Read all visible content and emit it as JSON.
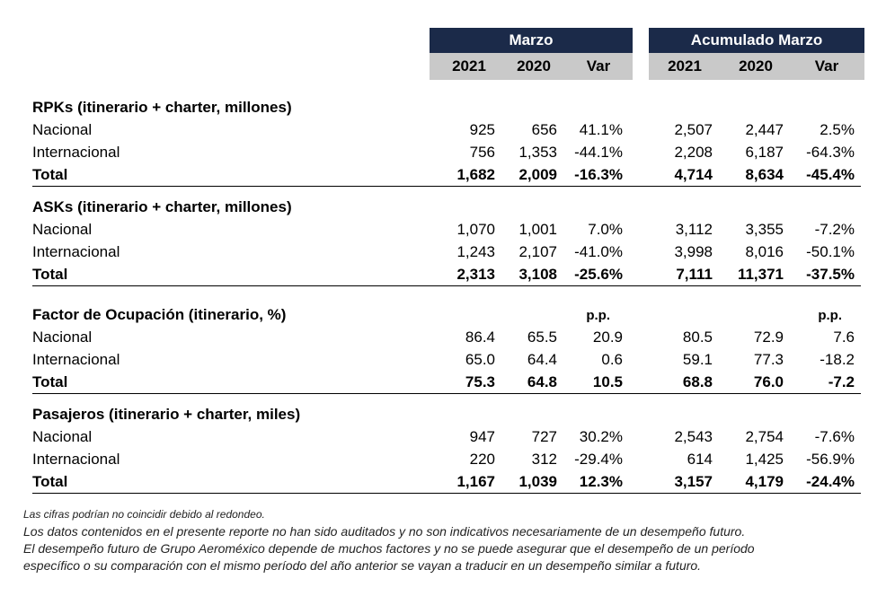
{
  "header": {
    "group1": "Marzo",
    "group2": "Acumulado Marzo",
    "years": [
      "2021",
      "2020",
      "Var",
      "2021",
      "2020",
      "Var"
    ]
  },
  "sections": [
    {
      "title": "RPKs (itinerario + charter, millones)",
      "pp": [
        "",
        ""
      ],
      "rows": [
        {
          "label": "Nacional",
          "values": [
            "925",
            "656",
            "41.1%",
            "2,507",
            "2,447",
            "2.5%"
          ],
          "bold": false
        },
        {
          "label": "Internacional",
          "values": [
            "756",
            "1,353",
            "-44.1%",
            "2,208",
            "6,187",
            "-64.3%"
          ],
          "bold": false
        },
        {
          "label": "Total",
          "values": [
            "1,682",
            "2,009",
            "-16.3%",
            "4,714",
            "8,634",
            "-45.4%"
          ],
          "bold": true
        }
      ]
    },
    {
      "title": "ASKs (itinerario + charter, millones)",
      "pp": [
        "",
        ""
      ],
      "rows": [
        {
          "label": "Nacional",
          "values": [
            "1,070",
            "1,001",
            "7.0%",
            "3,112",
            "3,355",
            "-7.2%"
          ],
          "bold": false
        },
        {
          "label": "Internacional",
          "values": [
            "1,243",
            "2,107",
            "-41.0%",
            "3,998",
            "8,016",
            "-50.1%"
          ],
          "bold": false
        },
        {
          "label": "Total",
          "values": [
            "2,313",
            "3,108",
            "-25.6%",
            "7,111",
            "11,371",
            "-37.5%"
          ],
          "bold": true
        }
      ]
    },
    {
      "title": "Factor de Ocupación (itinerario, %)",
      "pp": [
        "p.p.",
        "p.p."
      ],
      "rows": [
        {
          "label": "Nacional",
          "values": [
            "86.4",
            "65.5",
            "20.9",
            "80.5",
            "72.9",
            "7.6"
          ],
          "bold": false
        },
        {
          "label": "Internacional",
          "values": [
            "65.0",
            "64.4",
            "0.6",
            "59.1",
            "77.3",
            "-18.2"
          ],
          "bold": false
        },
        {
          "label": "Total",
          "values": [
            "75.3",
            "64.8",
            "10.5",
            "68.8",
            "76.0",
            "-7.2"
          ],
          "bold": true
        }
      ]
    },
    {
      "title": "Pasajeros (itinerario + charter, miles)",
      "pp": [
        "",
        ""
      ],
      "rows": [
        {
          "label": "Nacional",
          "values": [
            "947",
            "727",
            "30.2%",
            "2,543",
            "2,754",
            "-7.6%"
          ],
          "bold": false
        },
        {
          "label": "Internacional",
          "values": [
            "220",
            "312",
            "-29.4%",
            "614",
            "1,425",
            "-56.9%"
          ],
          "bold": false
        },
        {
          "label": "Total",
          "values": [
            "1,167",
            "1,039",
            "12.3%",
            "3,157",
            "4,179",
            "-24.4%"
          ],
          "bold": true
        }
      ]
    }
  ],
  "notes": [
    "Las cifras podrían no coincidir debido al redondeo.",
    "Los datos contenidos en el presente reporte no han sido auditados y no son indicativos necesariamente de un desempeño futuro.",
    "El desempeño futuro de Grupo Aeroméxico depende de muchos factores y no se puede asegurar que el desempeño de un período",
    "específico o su comparación con el mismo período del año anterior se vayan a traducir en un desempeño similar a futuro."
  ]
}
